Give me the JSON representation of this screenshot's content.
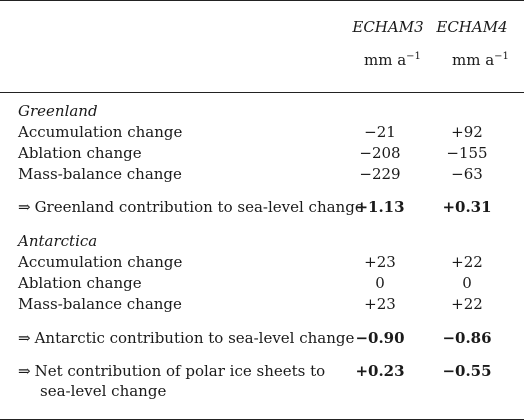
{
  "columns": [
    {
      "model": "ECHAM3",
      "unit": "mm a",
      "unit_sup": "−1"
    },
    {
      "model": "ECHAM4",
      "unit": "mm a",
      "unit_sup": "−1"
    }
  ],
  "greenland": {
    "heading": "Greenland",
    "rows": [
      {
        "label": "Accumulation change",
        "v1": "−21",
        "v2": "+92"
      },
      {
        "label": "Ablation change",
        "v1": "−208",
        "v2": "−155"
      },
      {
        "label": "Mass-balance change",
        "v1": "−229",
        "v2": "−63"
      }
    ],
    "contribution": {
      "arrow": "⇒",
      "label": "Greenland contribution to sea-level change",
      "v1": "+1.13",
      "v2": "+0.31"
    }
  },
  "antarctica": {
    "heading": "Antarctica",
    "rows": [
      {
        "label": "Accumulation change",
        "v1": "+23",
        "v2": "+22"
      },
      {
        "label": "Ablation change",
        "v1": "0",
        "v2": "0"
      },
      {
        "label": "Mass-balance change",
        "v1": "+23",
        "v2": "+22"
      }
    ],
    "contribution": {
      "arrow": "⇒",
      "label": "Antarctic contribution to sea-level change",
      "v1": "−0.90",
      "v2": "−0.86"
    }
  },
  "net": {
    "arrow": "⇒",
    "label_line1": "Net contribution of polar ice sheets to",
    "label_line2": "sea-level change",
    "v1": "+0.23",
    "v2": "−0.55"
  }
}
